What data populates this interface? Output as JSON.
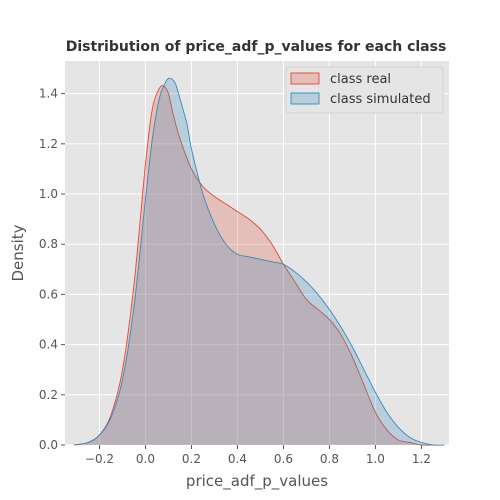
{
  "chart_data": {
    "type": "area",
    "title": "Distribution of price_adf_p_values for each class",
    "xlabel": "price_adf_p_values",
    "ylabel": "Density",
    "xlim": [
      -0.35,
      1.32
    ],
    "ylim": [
      0,
      1.53
    ],
    "grid": true,
    "legend_position": "top-right",
    "x_ticks": [
      -0.2,
      0.0,
      0.2,
      0.4,
      0.6,
      0.8,
      1.0,
      1.2
    ],
    "x_tick_labels": [
      "−0.2",
      "0.0",
      "0.2",
      "0.4",
      "0.6",
      "0.8",
      "1.0",
      "1.2"
    ],
    "y_ticks": [
      0.0,
      0.2,
      0.4,
      0.6,
      0.8,
      1.0,
      1.2,
      1.4
    ],
    "y_tick_labels": [
      "0.0",
      "0.2",
      "0.4",
      "0.6",
      "0.8",
      "1.0",
      "1.2",
      "1.4"
    ],
    "series": [
      {
        "name": "class real",
        "color": "#E24A33",
        "x": [
          -0.31,
          -0.25,
          -0.2,
          -0.15,
          -0.1,
          -0.05,
          0.0,
          0.03,
          0.06,
          0.08,
          0.1,
          0.12,
          0.15,
          0.2,
          0.25,
          0.3,
          0.35,
          0.4,
          0.45,
          0.5,
          0.55,
          0.6,
          0.65,
          0.7,
          0.75,
          0.8,
          0.85,
          0.9,
          0.95,
          1.0,
          1.05,
          1.1,
          1.15,
          1.2,
          1.25
        ],
        "y": [
          0.0,
          0.01,
          0.04,
          0.12,
          0.3,
          0.64,
          1.12,
          1.34,
          1.42,
          1.43,
          1.4,
          1.32,
          1.22,
          1.1,
          1.03,
          0.99,
          0.96,
          0.93,
          0.9,
          0.86,
          0.8,
          0.72,
          0.65,
          0.58,
          0.54,
          0.5,
          0.44,
          0.35,
          0.24,
          0.13,
          0.06,
          0.02,
          0.01,
          0.0,
          0.0
        ]
      },
      {
        "name": "class simulated",
        "color": "#348ABD",
        "x": [
          -0.31,
          -0.25,
          -0.2,
          -0.15,
          -0.1,
          -0.05,
          0.0,
          0.03,
          0.06,
          0.09,
          0.11,
          0.13,
          0.15,
          0.18,
          0.2,
          0.25,
          0.3,
          0.35,
          0.4,
          0.45,
          0.5,
          0.55,
          0.6,
          0.65,
          0.7,
          0.75,
          0.8,
          0.85,
          0.9,
          0.95,
          1.0,
          1.05,
          1.1,
          1.15,
          1.2,
          1.25,
          1.3
        ],
        "y": [
          0.0,
          0.01,
          0.04,
          0.11,
          0.26,
          0.55,
          0.98,
          1.22,
          1.38,
          1.45,
          1.46,
          1.44,
          1.38,
          1.28,
          1.18,
          1.0,
          0.88,
          0.8,
          0.76,
          0.75,
          0.74,
          0.73,
          0.72,
          0.69,
          0.65,
          0.6,
          0.54,
          0.47,
          0.39,
          0.3,
          0.21,
          0.13,
          0.07,
          0.03,
          0.01,
          0.0,
          0.0
        ]
      }
    ]
  }
}
